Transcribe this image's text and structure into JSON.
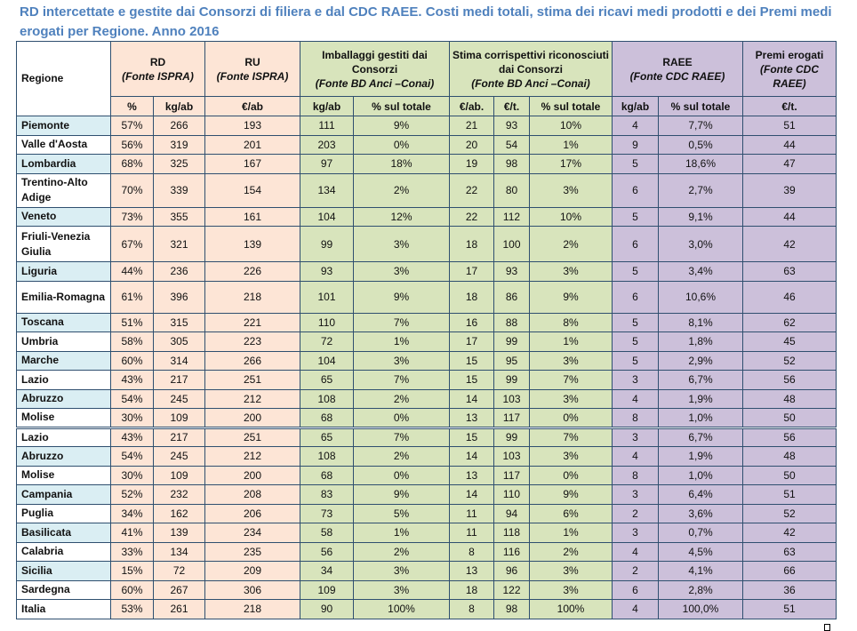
{
  "title": "RD intercettate e gestite dai Consorzi di filiera e dal CDC RAEE. Costi medi totali, stima dei ricavi medi prodotti e dei Premi medi erogati per Regione. Anno 2016",
  "headers": {
    "regione": "Regione",
    "rd": "RD",
    "rd_src": "(Fonte ISPRA)",
    "ru": "RU",
    "ru_src": "(Fonte ISPRA)",
    "imb": "Imballaggi gestiti dai Consorzi",
    "imb_src": "(Fonte BD Anci –Conai)",
    "stima": "Stima corrispettivi riconosciuti dai Consorzi",
    "stima_src": "(Fonte BD Anci –Conai)",
    "raee": "RAEE",
    "raee_src": "(Fonte CDC RAEE)",
    "premi": "Premi erogati",
    "premi_src": "(Fonte CDC RAEE)",
    "sub": [
      "%",
      "kg/ab",
      "€/ab",
      "kg/ab",
      "% sul totale",
      "€/ab.",
      "€/t.",
      "% sul totale",
      "kg/ab",
      "% sul totale",
      "€/t."
    ]
  },
  "rows": [
    [
      "Piemonte",
      "57%",
      "266",
      "193",
      "111",
      "9%",
      "21",
      "93",
      "10%",
      "4",
      "7,7%",
      "51"
    ],
    [
      "Valle d'Aosta",
      "56%",
      "319",
      "201",
      "203",
      "0%",
      "20",
      "54",
      "1%",
      "9",
      "0,5%",
      "44"
    ],
    [
      "Lombardia",
      "68%",
      "325",
      "167",
      "97",
      "18%",
      "19",
      "98",
      "17%",
      "5",
      "18,6%",
      "47"
    ],
    [
      "Trentino-Alto Adige",
      "70%",
      "339",
      "154",
      "134",
      "2%",
      "22",
      "80",
      "3%",
      "6",
      "2,7%",
      "39"
    ],
    [
      "Veneto",
      "73%",
      "355",
      "161",
      "104",
      "12%",
      "22",
      "112",
      "10%",
      "5",
      "9,1%",
      "44"
    ],
    [
      "Friuli-Venezia Giulia",
      "67%",
      "321",
      "139",
      "99",
      "3%",
      "18",
      "100",
      "2%",
      "6",
      "3,0%",
      "42"
    ],
    [
      "Liguria",
      "44%",
      "236",
      "226",
      "93",
      "3%",
      "17",
      "93",
      "3%",
      "5",
      "3,4%",
      "63"
    ],
    [
      "Emilia-Romagna",
      "61%",
      "396",
      "218",
      "101",
      "9%",
      "18",
      "86",
      "9%",
      "6",
      "10,6%",
      "46"
    ],
    [
      "Toscana",
      "51%",
      "315",
      "221",
      "110",
      "7%",
      "16",
      "88",
      "8%",
      "5",
      "8,1%",
      "62"
    ],
    [
      "Umbria",
      "58%",
      "305",
      "223",
      "72",
      "1%",
      "17",
      "99",
      "1%",
      "5",
      "1,8%",
      "45"
    ],
    [
      "Marche",
      "60%",
      "314",
      "266",
      "104",
      "3%",
      "15",
      "95",
      "3%",
      "5",
      "2,9%",
      "52"
    ],
    [
      "Lazio",
      "43%",
      "217",
      "251",
      "65",
      "7%",
      "15",
      "99",
      "7%",
      "3",
      "6,7%",
      "56"
    ],
    [
      "Abruzzo",
      "54%",
      "245",
      "212",
      "108",
      "2%",
      "14",
      "103",
      "3%",
      "4",
      "1,9%",
      "48"
    ],
    [
      "Molise",
      "30%",
      "109",
      "200",
      "68",
      "0%",
      "13",
      "117",
      "0%",
      "8",
      "1,0%",
      "50"
    ],
    [
      "Lazio",
      "43%",
      "217",
      "251",
      "65",
      "7%",
      "15",
      "99",
      "7%",
      "3",
      "6,7%",
      "56"
    ],
    [
      "Abruzzo",
      "54%",
      "245",
      "212",
      "108",
      "2%",
      "14",
      "103",
      "3%",
      "4",
      "1,9%",
      "48"
    ],
    [
      "Molise",
      "30%",
      "109",
      "200",
      "68",
      "0%",
      "13",
      "117",
      "0%",
      "8",
      "1,0%",
      "50"
    ],
    [
      "Campania",
      "52%",
      "232",
      "208",
      "83",
      "9%",
      "14",
      "110",
      "9%",
      "3",
      "6,4%",
      "51"
    ],
    [
      "Puglia",
      "34%",
      "162",
      "206",
      "73",
      "5%",
      "11",
      "94",
      "6%",
      "2",
      "3,6%",
      "52"
    ],
    [
      "Basilicata",
      "41%",
      "139",
      "234",
      "58",
      "1%",
      "11",
      "118",
      "1%",
      "3",
      "0,7%",
      "42"
    ],
    [
      "Calabria",
      "33%",
      "134",
      "235",
      "56",
      "2%",
      "8",
      "116",
      "2%",
      "4",
      "4,5%",
      "63"
    ],
    [
      "Sicilia",
      "15%",
      "72",
      "209",
      "34",
      "3%",
      "13",
      "96",
      "3%",
      "2",
      "4,1%",
      "66"
    ],
    [
      "Sardegna",
      "60%",
      "267",
      "306",
      "109",
      "3%",
      "18",
      "122",
      "3%",
      "6",
      "2,8%",
      "36"
    ],
    [
      "Italia",
      "53%",
      "261",
      "218",
      "90",
      "100%",
      "8",
      "98",
      "100%",
      "4",
      "100,0%",
      "51"
    ]
  ]
}
